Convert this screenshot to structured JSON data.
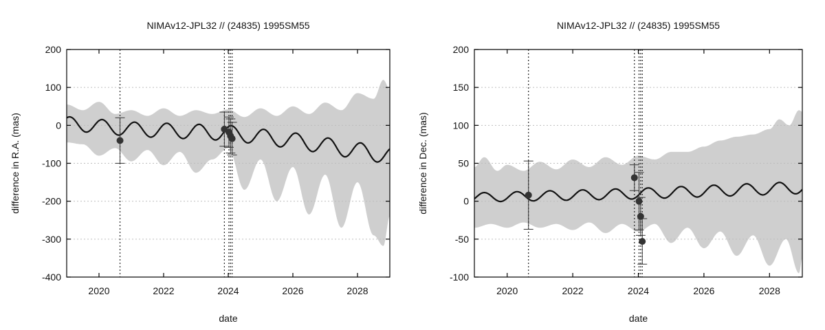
{
  "colors": {
    "band": "#cfcfcf",
    "model": "#111111",
    "obs": "#333333",
    "grid": "#bdbdbd"
  },
  "chart_data": [
    {
      "type": "line",
      "title": "NIMAv12-JPL32 // (24835) 1995SM55",
      "xlabel": "date",
      "ylabel": "difference in R.A. (mas)",
      "xlim": [
        2019.0,
        2029.0
      ],
      "ylim": [
        -400,
        200
      ],
      "xticks": [
        2020,
        2022,
        2024,
        2026,
        2028
      ],
      "xtick_labels": [
        "2020",
        "2022",
        "2024",
        "2026",
        "2028"
      ],
      "yticks": [
        -400,
        -300,
        -200,
        -100,
        0,
        100,
        200
      ],
      "ytick_labels": [
        "-400",
        "-300",
        "-200",
        "-100",
        "0",
        "100",
        "200"
      ],
      "grid": true,
      "epoch_lines": [
        2020.65,
        2023.88,
        2024.02,
        2024.07,
        2024.12
      ],
      "model_curve": {
        "period_years": 1.0,
        "offset": [
          [
            2019.0,
            5
          ],
          [
            2021.0,
            -10
          ],
          [
            2024.0,
            -20
          ],
          [
            2026.0,
            -40
          ],
          [
            2029.0,
            -80
          ]
        ],
        "amplitude": [
          [
            2019.0,
            18
          ],
          [
            2029.0,
            22
          ]
        ],
        "phase_year": 2019.1
      },
      "uncertainty_band": {
        "upper": [
          [
            2019.0,
            55
          ],
          [
            2019.5,
            40
          ],
          [
            2020.0,
            62
          ],
          [
            2020.5,
            30
          ],
          [
            2021.0,
            40
          ],
          [
            2021.5,
            25
          ],
          [
            2022.0,
            45
          ],
          [
            2022.5,
            25
          ],
          [
            2023.0,
            40
          ],
          [
            2023.5,
            30
          ],
          [
            2024.0,
            42
          ],
          [
            2024.5,
            22
          ],
          [
            2025.0,
            45
          ],
          [
            2025.5,
            25
          ],
          [
            2026.0,
            50
          ],
          [
            2026.5,
            30
          ],
          [
            2027.0,
            60
          ],
          [
            2027.5,
            40
          ],
          [
            2028.0,
            85
          ],
          [
            2028.5,
            70
          ],
          [
            2028.8,
            120
          ],
          [
            2029.0,
            95
          ]
        ],
        "lower": [
          [
            2019.0,
            -45
          ],
          [
            2019.5,
            -50
          ],
          [
            2020.0,
            -80
          ],
          [
            2020.5,
            -60
          ],
          [
            2021.0,
            -95
          ],
          [
            2021.5,
            -65
          ],
          [
            2022.0,
            -105
          ],
          [
            2022.5,
            -70
          ],
          [
            2023.0,
            -125
          ],
          [
            2023.5,
            -90
          ],
          [
            2024.0,
            -60
          ],
          [
            2024.5,
            -170
          ],
          [
            2025.0,
            -90
          ],
          [
            2025.5,
            -200
          ],
          [
            2026.0,
            -110
          ],
          [
            2026.5,
            -235
          ],
          [
            2027.0,
            -130
          ],
          [
            2027.5,
            -270
          ],
          [
            2028.0,
            -150
          ],
          [
            2028.5,
            -290
          ],
          [
            2028.8,
            -318
          ],
          [
            2029.0,
            -240
          ]
        ]
      },
      "observations": [
        {
          "x": 2020.65,
          "y": -40,
          "err": 60
        },
        {
          "x": 2023.88,
          "y": -10,
          "err": 45
        },
        {
          "x": 2024.02,
          "y": -18,
          "err": 40
        },
        {
          "x": 2024.07,
          "y": -28,
          "err": 45
        },
        {
          "x": 2024.12,
          "y": -35,
          "err": 43
        }
      ]
    },
    {
      "type": "line",
      "title": "NIMAv12-JPL32 // (24835) 1995SM55",
      "xlabel": "date",
      "ylabel": "difference in Dec. (mas)",
      "xlim": [
        2019.0,
        2029.0
      ],
      "ylim": [
        -100,
        200
      ],
      "xticks": [
        2020,
        2022,
        2024,
        2026,
        2028
      ],
      "xtick_labels": [
        "2020",
        "2022",
        "2024",
        "2026",
        "2028"
      ],
      "yticks": [
        -100,
        -50,
        0,
        50,
        100,
        150,
        200
      ],
      "ytick_labels": [
        "-100",
        "-50",
        "0",
        "50",
        "100",
        "150",
        "200"
      ],
      "grid": true,
      "epoch_lines": [
        2020.65,
        2023.88,
        2024.02,
        2024.07,
        2024.12
      ],
      "model_curve": {
        "period_years": 1.0,
        "offset": [
          [
            2019.0,
            5
          ],
          [
            2024.0,
            10
          ],
          [
            2029.0,
            18
          ]
        ],
        "amplitude": [
          [
            2019.0,
            6
          ],
          [
            2029.0,
            8
          ]
        ],
        "phase_year": 2019.3
      },
      "uncertainty_band": {
        "upper": [
          [
            2019.0,
            45
          ],
          [
            2019.3,
            58
          ],
          [
            2019.7,
            40
          ],
          [
            2020.0,
            48
          ],
          [
            2020.5,
            40
          ],
          [
            2021.0,
            52
          ],
          [
            2021.5,
            42
          ],
          [
            2022.0,
            55
          ],
          [
            2022.5,
            45
          ],
          [
            2023.0,
            58
          ],
          [
            2023.5,
            48
          ],
          [
            2024.0,
            60
          ],
          [
            2024.5,
            55
          ],
          [
            2025.0,
            65
          ],
          [
            2025.5,
            65
          ],
          [
            2026.0,
            72
          ],
          [
            2026.5,
            80
          ],
          [
            2027.0,
            85
          ],
          [
            2027.5,
            88
          ],
          [
            2028.0,
            95
          ],
          [
            2028.3,
            108
          ],
          [
            2028.6,
            100
          ],
          [
            2028.9,
            120
          ],
          [
            2029.0,
            118
          ]
        ],
        "lower": [
          [
            2019.0,
            -35
          ],
          [
            2019.5,
            -30
          ],
          [
            2020.0,
            -35
          ],
          [
            2020.5,
            -28
          ],
          [
            2021.0,
            -35
          ],
          [
            2021.5,
            -30
          ],
          [
            2022.0,
            -38
          ],
          [
            2022.5,
            -28
          ],
          [
            2023.0,
            -42
          ],
          [
            2023.5,
            -30
          ],
          [
            2024.0,
            -40
          ],
          [
            2024.5,
            -30
          ],
          [
            2025.0,
            -55
          ],
          [
            2025.5,
            -35
          ],
          [
            2026.0,
            -62
          ],
          [
            2026.5,
            -40
          ],
          [
            2027.0,
            -72
          ],
          [
            2027.5,
            -45
          ],
          [
            2028.0,
            -85
          ],
          [
            2028.5,
            -50
          ],
          [
            2028.9,
            -95
          ],
          [
            2029.0,
            -75
          ]
        ]
      },
      "observations": [
        {
          "x": 2020.65,
          "y": 8,
          "err": 45
        },
        {
          "x": 2023.88,
          "y": 31,
          "err": 17
        },
        {
          "x": 2024.02,
          "y": 0,
          "err": 38
        },
        {
          "x": 2024.07,
          "y": -20,
          "err": 25
        },
        {
          "x": 2024.12,
          "y": -53,
          "err": 30
        }
      ]
    }
  ]
}
